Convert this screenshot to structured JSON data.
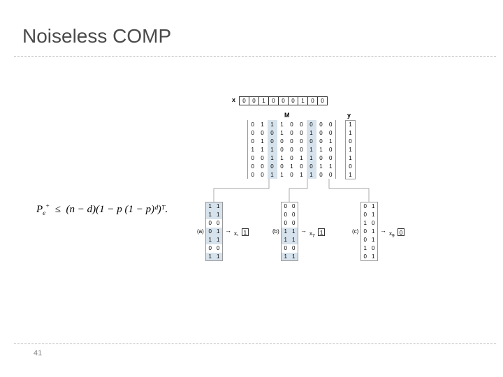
{
  "title": "Noiseless COMP",
  "page_number": "41",
  "xvec": {
    "label": "x",
    "values": [
      "0",
      "0",
      "1",
      "0",
      "0",
      "0",
      "1",
      "0",
      "0"
    ]
  },
  "M": {
    "label": "M",
    "rows": [
      [
        "0",
        "1",
        "1",
        "1",
        "0",
        "0",
        "0",
        "0",
        "0"
      ],
      [
        "0",
        "0",
        "0",
        "1",
        "0",
        "0",
        "1",
        "0",
        "0"
      ],
      [
        "0",
        "1",
        "0",
        "0",
        "0",
        "0",
        "0",
        "0",
        "1"
      ],
      [
        "1",
        "1",
        "1",
        "0",
        "0",
        "0",
        "1",
        "1",
        "0"
      ],
      [
        "0",
        "0",
        "1",
        "1",
        "0",
        "1",
        "1",
        "0",
        "0"
      ],
      [
        "0",
        "0",
        "0",
        "0",
        "1",
        "0",
        "0",
        "1",
        "1"
      ],
      [
        "0",
        "0",
        "1",
        "1",
        "0",
        "1",
        "1",
        "0",
        "0"
      ]
    ],
    "highlight_cols": [
      2,
      6
    ]
  },
  "yvec": {
    "label": "y",
    "values": [
      "1",
      "1",
      "0",
      "1",
      "1",
      "0",
      "1"
    ]
  },
  "formula": {
    "lhs_pe_symbol": "P",
    "lhs_sub": "e",
    "lhs_sup": "+",
    "op": "≤",
    "rhs": "(n − d)(1 − p (1 − p)ᵈ)ᵀ."
  },
  "pairs": {
    "a": {
      "label": "(a)",
      "rows": [
        [
          "1",
          "1"
        ],
        [
          "1",
          "1"
        ],
        [
          "0",
          "0"
        ],
        [
          "0",
          "1"
        ],
        [
          "1",
          "1"
        ],
        [
          "0",
          "0"
        ],
        [
          "1",
          "1"
        ]
      ],
      "highlights": [
        0,
        1,
        3,
        4,
        6
      ],
      "x_sub": "1",
      "x_val": "1"
    },
    "b": {
      "label": "(b)",
      "rows": [
        [
          "0",
          "0"
        ],
        [
          "0",
          "0"
        ],
        [
          "0",
          "0"
        ],
        [
          "1",
          "1"
        ],
        [
          "1",
          "1"
        ],
        [
          "0",
          "0"
        ],
        [
          "1",
          "1"
        ]
      ],
      "highlights": [
        3,
        4,
        6
      ],
      "x_sub": "7",
      "x_val": "1"
    },
    "c": {
      "label": "(c)",
      "rows": [
        [
          "0",
          "1"
        ],
        [
          "0",
          "1"
        ],
        [
          "1",
          "0"
        ],
        [
          "0",
          "1"
        ],
        [
          "0",
          "1"
        ],
        [
          "1",
          "0"
        ],
        [
          "0",
          "1"
        ]
      ],
      "highlights": [],
      "x_sub": "9",
      "x_val": "0"
    }
  },
  "colors": {
    "highlight": "#d6e2ec",
    "border": "#999999",
    "text": "#4a4a4a"
  }
}
